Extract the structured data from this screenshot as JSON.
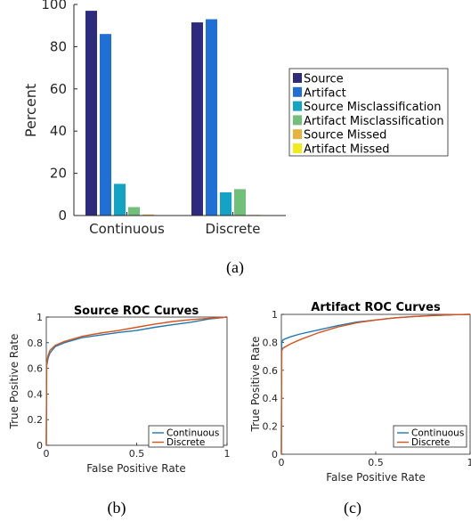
{
  "chart_data": [
    {
      "type": "bar",
      "caption": "(a)",
      "categories": [
        "Continuous",
        "Discrete"
      ],
      "ylabel": "Percent",
      "ylim": [
        0,
        100
      ],
      "yticks": [
        "0",
        "20",
        "40",
        "60",
        "80",
        "100"
      ],
      "legend_position": "right",
      "series": [
        {
          "name": "Source",
          "color": "#2e2a7e",
          "values": [
            97,
            91.5
          ]
        },
        {
          "name": "Artifact",
          "color": "#1f6fd6",
          "values": [
            86,
            93
          ]
        },
        {
          "name": "Source Misclassification",
          "color": "#13a3c4",
          "values": [
            15,
            11
          ]
        },
        {
          "name": "Artifact Misclassification",
          "color": "#72bf7a",
          "values": [
            4,
            12.5
          ]
        },
        {
          "name": "Source Missed",
          "color": "#e9b23c",
          "values": [
            0.5,
            0.3
          ]
        },
        {
          "name": "Artifact Missed",
          "color": "#f2ea1b",
          "values": [
            0.1,
            0.2
          ]
        }
      ]
    },
    {
      "type": "line",
      "caption": "(b)",
      "title": "Source ROC Curves",
      "xlabel": "False Positive Rate",
      "ylabel": "True Positive Rate",
      "xlim": [
        0,
        1
      ],
      "ylim": [
        0,
        1
      ],
      "xticks": [
        "0",
        "0.5",
        "1"
      ],
      "yticks": [
        "0",
        "0.2",
        "0.4",
        "0.6",
        "0.8",
        "1"
      ],
      "legend_position": "bottom-right",
      "series": [
        {
          "name": "Continuous",
          "color": "#1f77b4",
          "x": [
            0,
            0.002,
            0.01,
            0.02,
            0.05,
            0.1,
            0.2,
            0.3,
            0.4,
            0.5,
            0.6,
            0.7,
            0.8,
            0.9,
            1.0
          ],
          "y": [
            0,
            0.62,
            0.68,
            0.72,
            0.77,
            0.8,
            0.84,
            0.86,
            0.88,
            0.895,
            0.92,
            0.94,
            0.96,
            0.985,
            1.0
          ]
        },
        {
          "name": "Discrete",
          "color": "#d95319",
          "x": [
            0,
            0.002,
            0.01,
            0.02,
            0.05,
            0.1,
            0.2,
            0.3,
            0.4,
            0.5,
            0.6,
            0.7,
            0.8,
            0.9,
            1.0
          ],
          "y": [
            0,
            0.64,
            0.7,
            0.74,
            0.78,
            0.81,
            0.85,
            0.875,
            0.895,
            0.92,
            0.945,
            0.965,
            0.98,
            0.99,
            1.0
          ]
        }
      ]
    },
    {
      "type": "line",
      "caption": "(c)",
      "title": "Artifact ROC Curves",
      "xlabel": "False Positive Rate",
      "ylabel": "True Positive Rate",
      "xlim": [
        0,
        1
      ],
      "ylim": [
        0,
        1
      ],
      "xticks": [
        "0",
        "0.5",
        "1"
      ],
      "yticks": [
        "0",
        "0.2",
        "0.4",
        "0.6",
        "0.8",
        "1"
      ],
      "legend_position": "bottom-right",
      "series": [
        {
          "name": "Continuous",
          "color": "#1f77b4",
          "x": [
            0,
            0.002,
            0.01,
            0.05,
            0.1,
            0.2,
            0.3,
            0.4,
            0.5,
            0.6,
            0.7,
            0.8,
            0.9,
            1.0
          ],
          "y": [
            0,
            0.8,
            0.82,
            0.84,
            0.86,
            0.89,
            0.92,
            0.945,
            0.96,
            0.975,
            0.985,
            0.992,
            0.997,
            1.0
          ]
        },
        {
          "name": "Discrete",
          "color": "#d95319",
          "x": [
            0,
            0.002,
            0.01,
            0.05,
            0.1,
            0.2,
            0.3,
            0.4,
            0.5,
            0.6,
            0.7,
            0.8,
            0.9,
            1.0
          ],
          "y": [
            0,
            0.74,
            0.76,
            0.79,
            0.82,
            0.87,
            0.91,
            0.94,
            0.96,
            0.975,
            0.985,
            0.992,
            0.997,
            1.0
          ]
        }
      ]
    }
  ]
}
